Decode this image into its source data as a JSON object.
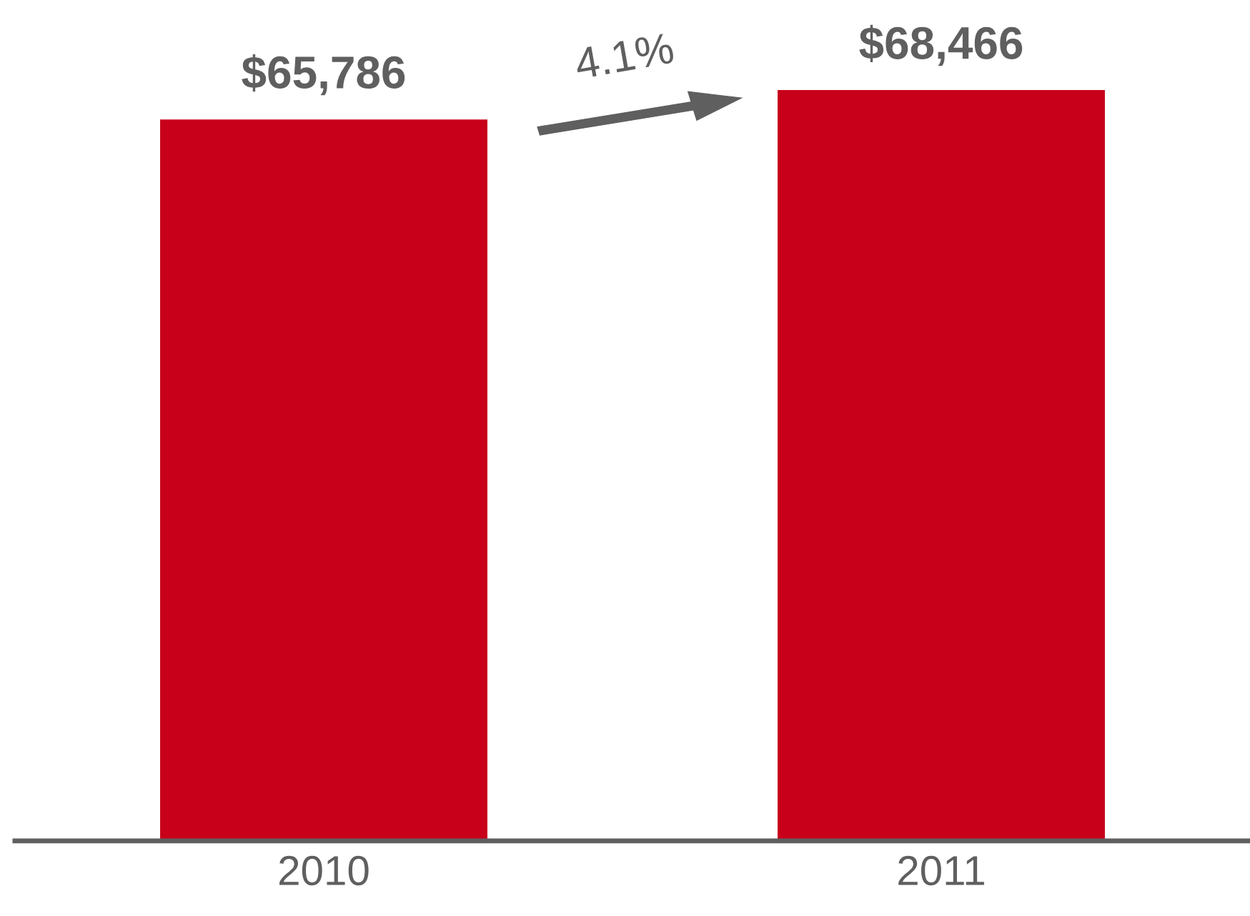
{
  "chart_data": {
    "type": "bar",
    "categories": [
      "2010",
      "2011"
    ],
    "values": [
      65786,
      68466
    ],
    "color": "#c8001a",
    "value_labels": [
      "$65,786",
      "$68,466"
    ],
    "annotations": [
      "4.1%"
    ],
    "grid": false,
    "legend": false
  }
}
